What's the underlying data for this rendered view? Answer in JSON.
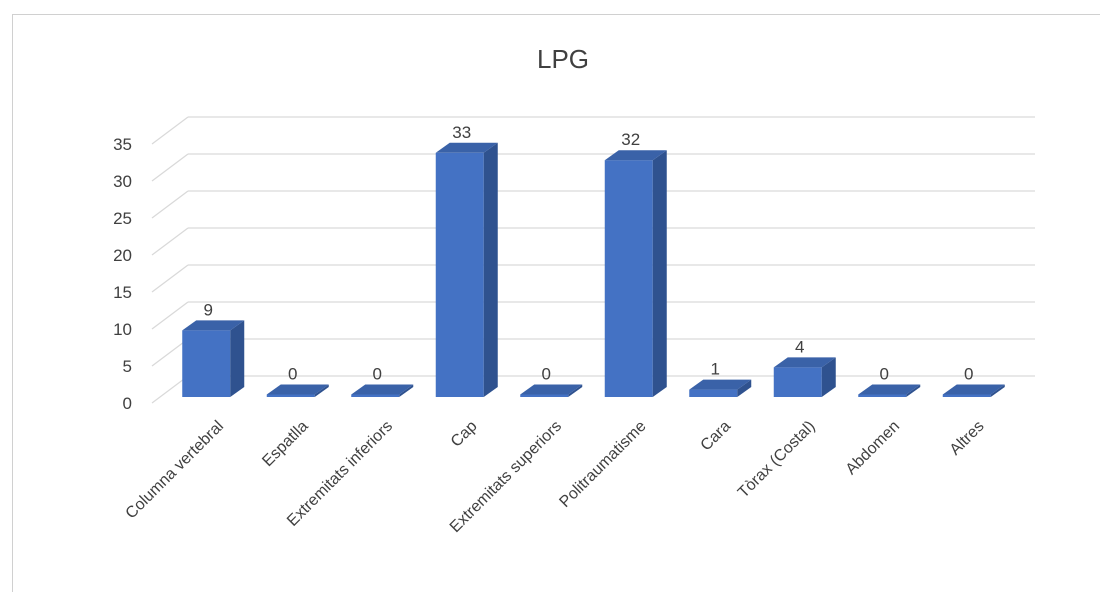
{
  "chart_data": {
    "type": "bar",
    "title": "LPG",
    "categories": [
      "Columna vertebral",
      "Espatlla",
      "Extremitats inferiors",
      "Cap",
      "Extremitats superiors",
      "Politraumatisme",
      "Cara",
      "Tòrax (Costal)",
      "Abdomen",
      "Altres"
    ],
    "values": [
      9,
      0,
      0,
      33,
      0,
      32,
      1,
      4,
      0,
      0
    ],
    "yticks": [
      "0",
      "5",
      "10",
      "15",
      "20",
      "25",
      "30",
      "35"
    ],
    "ylim": [
      0,
      35
    ],
    "grid": true,
    "data_labels": true,
    "bar_color": "#4472c4",
    "bar_side_color": "#2f528f",
    "bar_top_color": "#3a62a8"
  }
}
